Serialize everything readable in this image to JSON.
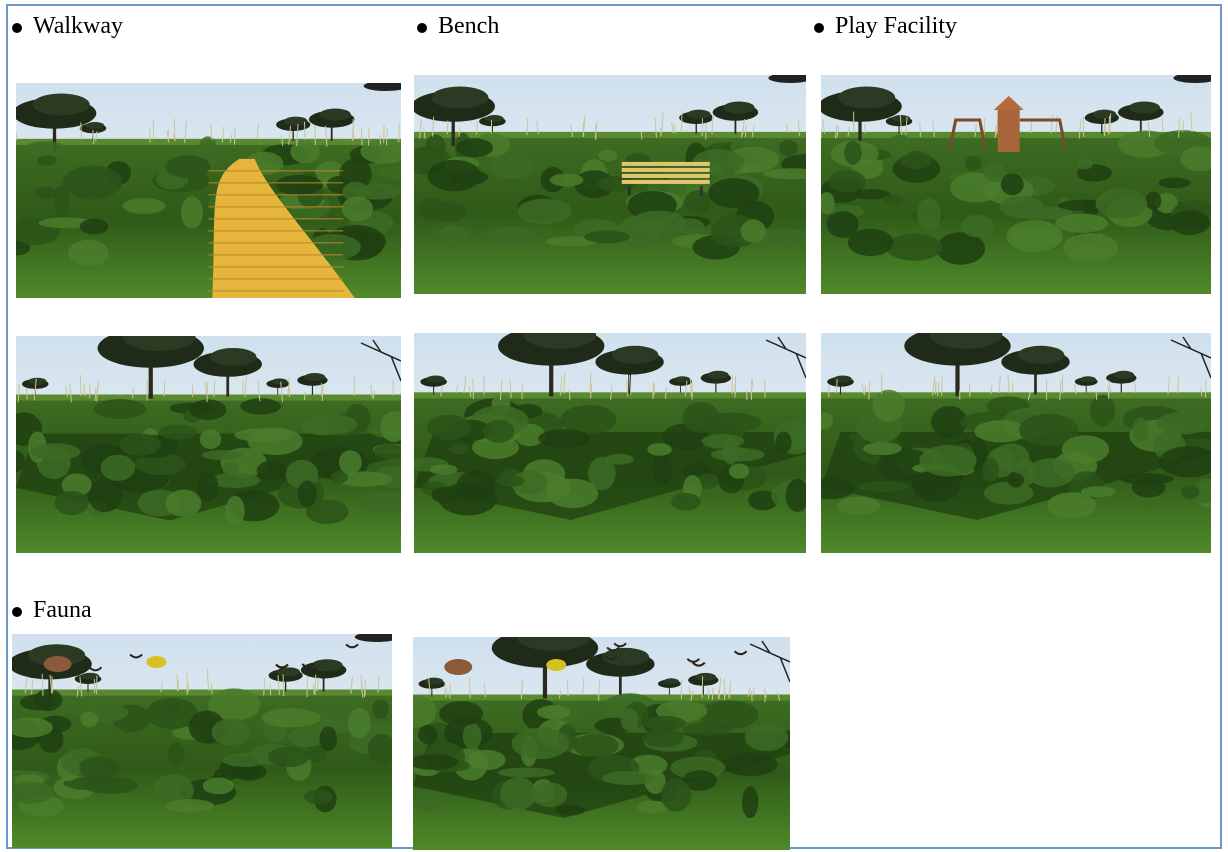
{
  "sections": [
    {
      "label": "Walkway"
    },
    {
      "label": "Bench"
    },
    {
      "label": "Play Facility"
    },
    {
      "label": "Fauna"
    }
  ]
}
